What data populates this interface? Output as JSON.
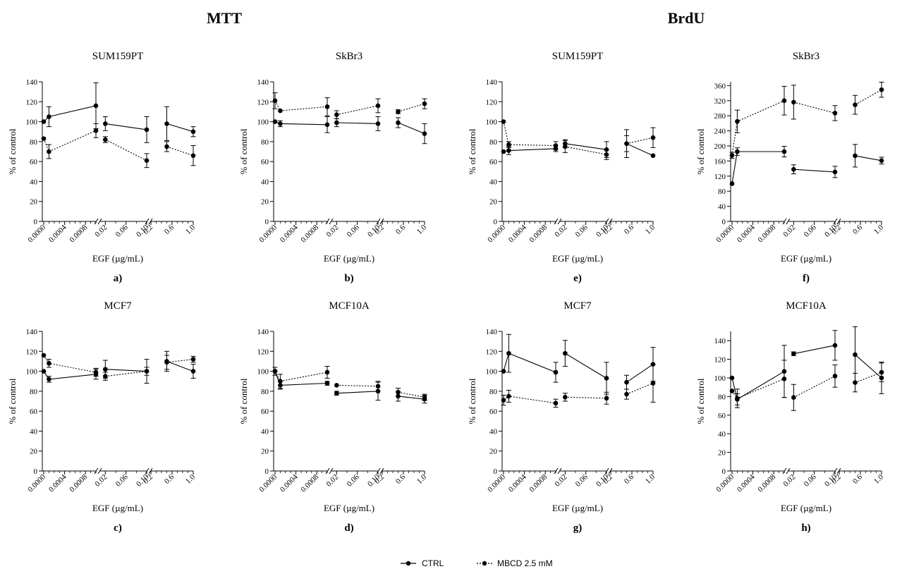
{
  "figure": {
    "section_titles": [
      "MTT",
      "BrdU"
    ],
    "x_axis_label": "EGF (µg/mL)",
    "y_axis_label": "% of control",
    "x_tick_labels": [
      "0.0000",
      "0.0004",
      "0.0008",
      "0.02",
      "0.06",
      "0.10",
      "0.2",
      "0.6",
      "1.0"
    ],
    "legend": [
      {
        "label": "CTRL",
        "style": "solid"
      },
      {
        "label": "MBCD 2.5 mM",
        "style": "dashed"
      }
    ],
    "colors": {
      "line": "#000000",
      "background": "#ffffff"
    }
  },
  "chart_data": [
    {
      "type": "line",
      "panel": "a)",
      "title": "SUM159PT",
      "section": "MTT",
      "xlabel": "EGF (µg/mL)",
      "ylabel": "% of control",
      "ylim": [
        0,
        140
      ],
      "yticks": [
        0,
        20,
        40,
        60,
        80,
        100,
        120,
        140
      ],
      "x_segments": [
        [
          0,
          0.001
        ],
        [
          0.01,
          0.1
        ],
        [
          0.2,
          1.0
        ]
      ],
      "x": [
        0,
        0.0001,
        0.001,
        0.02,
        0.1,
        0.5,
        1.0
      ],
      "series": [
        {
          "name": "CTRL",
          "values": [
            100,
            105,
            116,
            98,
            92,
            98,
            90
          ],
          "error": [
            0,
            10,
            23,
            7,
            13,
            17,
            5
          ]
        },
        {
          "name": "MBCD 2.5 mM",
          "values": [
            83,
            70,
            91,
            82,
            61,
            75,
            66
          ],
          "error": [
            0,
            7,
            7,
            3,
            7,
            5,
            10
          ]
        }
      ]
    },
    {
      "type": "line",
      "panel": "b)",
      "title": "SkBr3",
      "section": "MTT",
      "xlabel": "EGF (µg/mL)",
      "ylabel": "% of control",
      "ylim": [
        0,
        140
      ],
      "yticks": [
        0,
        20,
        40,
        60,
        80,
        100,
        120,
        140
      ],
      "x_segments": [
        [
          0,
          0.001
        ],
        [
          0.01,
          0.1
        ],
        [
          0.2,
          1.0
        ]
      ],
      "x": [
        0,
        0.0001,
        0.001,
        0.02,
        0.1,
        0.5,
        1.0
      ],
      "series": [
        {
          "name": "CTRL",
          "values": [
            100,
            98,
            97,
            99,
            98,
            99,
            88
          ],
          "error": [
            0,
            3,
            8,
            4,
            7,
            5,
            10
          ]
        },
        {
          "name": "MBCD 2.5 mM",
          "values": [
            121,
            111,
            115,
            107,
            116,
            110,
            118
          ],
          "error": [
            8,
            0,
            9,
            4,
            7,
            2,
            5
          ]
        }
      ]
    },
    {
      "type": "line",
      "panel": "c)",
      "title": "MCF7",
      "section": "MTT",
      "xlabel": "EGF (µg/mL)",
      "ylabel": "% of control",
      "ylim": [
        0,
        140
      ],
      "yticks": [
        0,
        20,
        40,
        60,
        80,
        100,
        120,
        140
      ],
      "x_segments": [
        [
          0,
          0.001
        ],
        [
          0.01,
          0.1
        ],
        [
          0.2,
          1.0
        ]
      ],
      "x": [
        0,
        0.0001,
        0.001,
        0.02,
        0.1,
        0.5,
        1.0
      ],
      "series": [
        {
          "name": "CTRL",
          "values": [
            100,
            92,
            97,
            102,
            100,
            110,
            100
          ],
          "error": [
            0,
            3,
            5,
            9,
            12,
            10,
            7
          ]
        },
        {
          "name": "MBCD 2.5 mM",
          "values": [
            116,
            108,
            99,
            95,
            100,
            109,
            112
          ],
          "error": [
            0,
            4,
            4,
            4,
            4,
            7,
            3
          ]
        }
      ]
    },
    {
      "type": "line",
      "panel": "d)",
      "title": "MCF10A",
      "section": "MTT",
      "xlabel": "EGF (µg/mL)",
      "ylabel": "% of control",
      "ylim": [
        0,
        140
      ],
      "yticks": [
        0,
        20,
        40,
        60,
        80,
        100,
        120,
        140
      ],
      "x_segments": [
        [
          0,
          0.001
        ],
        [
          0.01,
          0.1
        ],
        [
          0.2,
          1.0
        ]
      ],
      "x": [
        0,
        0.0001,
        0.001,
        0.02,
        0.1,
        0.5,
        1.0
      ],
      "series": [
        {
          "name": "CTRL",
          "values": [
            100,
            86,
            88,
            78,
            80,
            75,
            72
          ],
          "error": [
            0,
            4,
            2,
            2,
            9,
            5,
            4
          ]
        },
        {
          "name": "MBCD 2.5 mM",
          "values": [
            100,
            90,
            99,
            86,
            85,
            79,
            74
          ],
          "error": [
            4,
            7,
            6,
            0,
            5,
            4,
            3
          ]
        }
      ]
    },
    {
      "type": "line",
      "panel": "e)",
      "title": "SUM159PT",
      "section": "BrdU",
      "xlabel": "EGF (µg/mL)",
      "ylabel": "% of control",
      "ylim": [
        0,
        140
      ],
      "yticks": [
        0,
        20,
        40,
        60,
        80,
        100,
        120,
        140
      ],
      "x_segments": [
        [
          0,
          0.001
        ],
        [
          0.01,
          0.1
        ],
        [
          0.2,
          1.0
        ]
      ],
      "x": [
        0,
        0.0001,
        0.001,
        0.02,
        0.1,
        0.5,
        1.0
      ],
      "series": [
        {
          "name": "CTRL",
          "values": [
            70,
            71,
            73,
            78,
            72,
            78,
            66
          ],
          "error": [
            0,
            4,
            3,
            4,
            8,
            14,
            0
          ]
        },
        {
          "name": "MBCD 2.5 mM",
          "values": [
            100,
            77,
            76,
            75,
            67,
            78,
            84
          ],
          "error": [
            0,
            3,
            4,
            6,
            5,
            8,
            10
          ]
        }
      ]
    },
    {
      "type": "line",
      "panel": "f)",
      "title": "SkBr3",
      "section": "BrdU",
      "xlabel": "EGF (µg/mL)",
      "ylabel": "% of control",
      "ylim": [
        0,
        370
      ],
      "yticks": [
        0,
        40,
        80,
        120,
        160,
        200,
        240,
        280,
        320,
        360
      ],
      "x_segments": [
        [
          0,
          0.001
        ],
        [
          0.01,
          0.1
        ],
        [
          0.2,
          1.0
        ]
      ],
      "x": [
        0,
        0.0001,
        0.001,
        0.02,
        0.1,
        0.5,
        1.0
      ],
      "series": [
        {
          "name": "CTRL",
          "values": [
            100,
            185,
            185,
            138,
            131,
            174,
            161
          ],
          "error": [
            0,
            10,
            14,
            12,
            15,
            30,
            9
          ]
        },
        {
          "name": "MBCD 2.5 mM",
          "values": [
            175,
            265,
            320,
            316,
            287,
            309,
            349
          ],
          "error": [
            8,
            30,
            38,
            45,
            20,
            25,
            20
          ]
        }
      ]
    },
    {
      "type": "line",
      "panel": "g)",
      "title": "MCF7",
      "section": "BrdU",
      "xlabel": "EGF (µg/mL)",
      "ylabel": "% of control",
      "ylim": [
        0,
        140
      ],
      "yticks": [
        0,
        20,
        40,
        60,
        80,
        100,
        120,
        140
      ],
      "x_segments": [
        [
          0,
          0.001
        ],
        [
          0.01,
          0.1
        ],
        [
          0.2,
          1.0
        ]
      ],
      "x": [
        0,
        0.0001,
        0.001,
        0.02,
        0.1,
        0.5,
        1.0
      ],
      "series": [
        {
          "name": "CTRL",
          "values": [
            100,
            118,
            99,
            118,
            93,
            89,
            107
          ],
          "error": [
            0,
            19,
            10,
            13,
            16,
            7,
            17
          ]
        },
        {
          "name": "MBCD 2.5 mM",
          "values": [
            71,
            75,
            68,
            74,
            73,
            77,
            88
          ],
          "error": [
            5,
            6,
            4,
            4,
            6,
            5,
            19
          ]
        }
      ]
    },
    {
      "type": "line",
      "panel": "h)",
      "title": "MCF10A",
      "section": "BrdU",
      "xlabel": "EGF (µg/mL)",
      "ylabel": "% of control",
      "ylim": [
        0,
        150
      ],
      "yticks": [
        0,
        20,
        40,
        60,
        80,
        100,
        120,
        140
      ],
      "x_segments": [
        [
          0,
          0.001
        ],
        [
          0.01,
          0.1
        ],
        [
          0.2,
          1.0
        ]
      ],
      "x": [
        0,
        0.0001,
        0.001,
        0.02,
        0.1,
        0.5,
        1.0
      ],
      "series": [
        {
          "name": "CTRL",
          "values": [
            100,
            77,
            107,
            126,
            135,
            125,
            100
          ],
          "error": [
            0,
            6,
            28,
            2,
            16,
            30,
            17
          ]
        },
        {
          "name": "MBCD 2.5 mM",
          "values": [
            86,
            78,
            99,
            79,
            102,
            95,
            106
          ],
          "error": [
            0,
            10,
            20,
            14,
            12,
            10,
            10
          ]
        }
      ]
    }
  ]
}
